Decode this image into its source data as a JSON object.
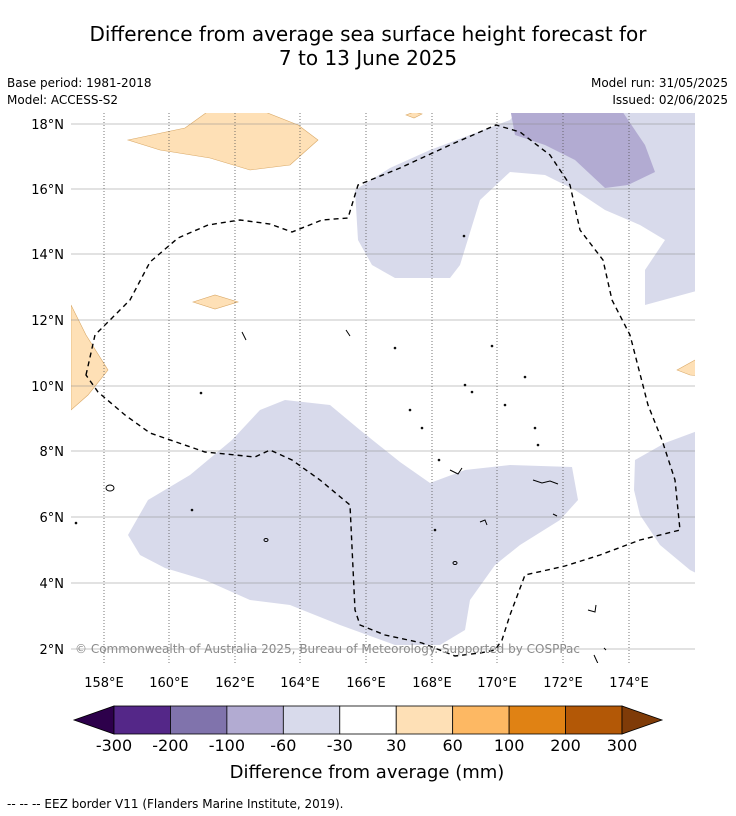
{
  "title_line1": "Difference from average sea surface height forecast for",
  "title_line2": "7 to 13 June 2025",
  "base_period": "Base period: 1981-2018",
  "model": "Model: ACCESS-S2",
  "model_run": "Model run: 31/05/2025",
  "issued": "Issued: 02/06/2025",
  "copyright": "© Commonwealth of Australia 2025, Bureau of Meteorology. Supported by COSPPac",
  "lat_ticks": [
    "18°N",
    "16°N",
    "14°N",
    "12°N",
    "10°N",
    "8°N",
    "6°N",
    "4°N",
    "2°N"
  ],
  "lon_ticks": [
    "158°E",
    "160°E",
    "162°E",
    "164°E",
    "166°E",
    "168°E",
    "170°E",
    "172°E",
    "174°E"
  ],
  "colorbar": {
    "title": "Difference from average (mm)",
    "labels": [
      "-300",
      "-200",
      "-100",
      "-60",
      "-30",
      "30",
      "60",
      "100",
      "200",
      "300"
    ],
    "colors": [
      "#2d004b",
      "#542788",
      "#8073ac",
      "#b2abd2",
      "#d8daeb",
      "#ffffff",
      "#fee0b6",
      "#fdb863",
      "#e08214",
      "#b35806",
      "#7f3b08"
    ],
    "extend": "both"
  },
  "legend_colors": {
    "negative_light": "#d8daeb",
    "negative_mid": "#b2abd2",
    "positive_light": "#fee0b6"
  },
  "footer": "--  --  -- EEZ border V11 (Flanders Marine Institute, 2019)."
}
